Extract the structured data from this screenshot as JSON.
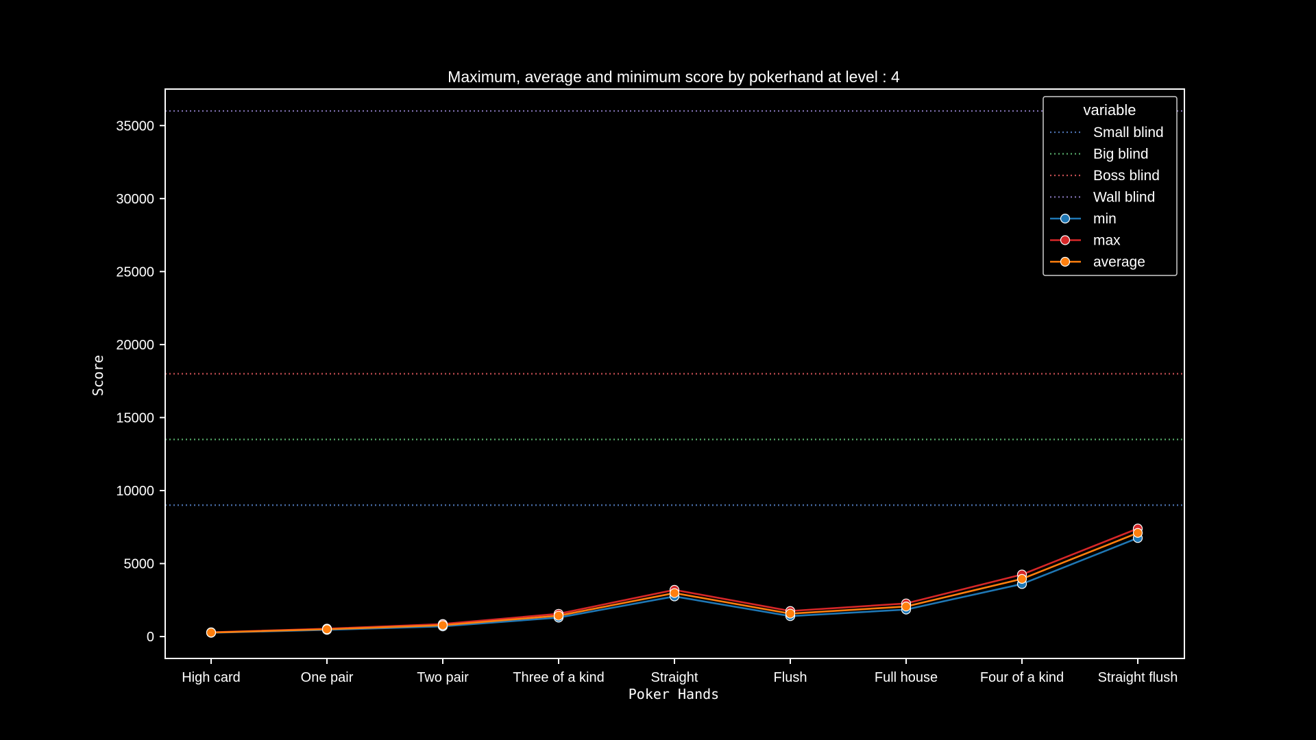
{
  "chart_data": {
    "type": "line",
    "title": "Maximum, average and minimum score by pokerhand at level : 4",
    "xlabel": "Poker Hands",
    "ylabel": "Score",
    "ylim": [
      -1500,
      37500
    ],
    "yticks": [
      0,
      5000,
      10000,
      15000,
      20000,
      25000,
      30000,
      35000
    ],
    "grid": false,
    "legend_position": "top-right",
    "legend_title": "variable",
    "categories": [
      "High card",
      "One pair",
      "Two pair",
      "Three of a kind",
      "Straight",
      "Flush",
      "Full house",
      "Four of a kind",
      "Straight flush"
    ],
    "reference_lines": [
      {
        "name": "Small blind",
        "value": 9000,
        "color": "#4c72b0"
      },
      {
        "name": "Big blind",
        "value": 13500,
        "color": "#55a868"
      },
      {
        "name": "Boss blind",
        "value": 18000,
        "color": "#c44e52"
      },
      {
        "name": "Wall blind",
        "value": 36000,
        "color": "#8172b3"
      }
    ],
    "series": [
      {
        "name": "min",
        "color": "#1f77b4",
        "values": [
          260,
          460,
          700,
          1300,
          2750,
          1400,
          1850,
          3600,
          6750
        ]
      },
      {
        "name": "max",
        "color": "#d62728",
        "values": [
          290,
          540,
          860,
          1560,
          3200,
          1750,
          2270,
          4250,
          7400
        ]
      },
      {
        "name": "average",
        "color": "#ff7f0e",
        "values": [
          275,
          500,
          780,
          1430,
          2980,
          1570,
          2060,
          3950,
          7100
        ]
      }
    ]
  }
}
